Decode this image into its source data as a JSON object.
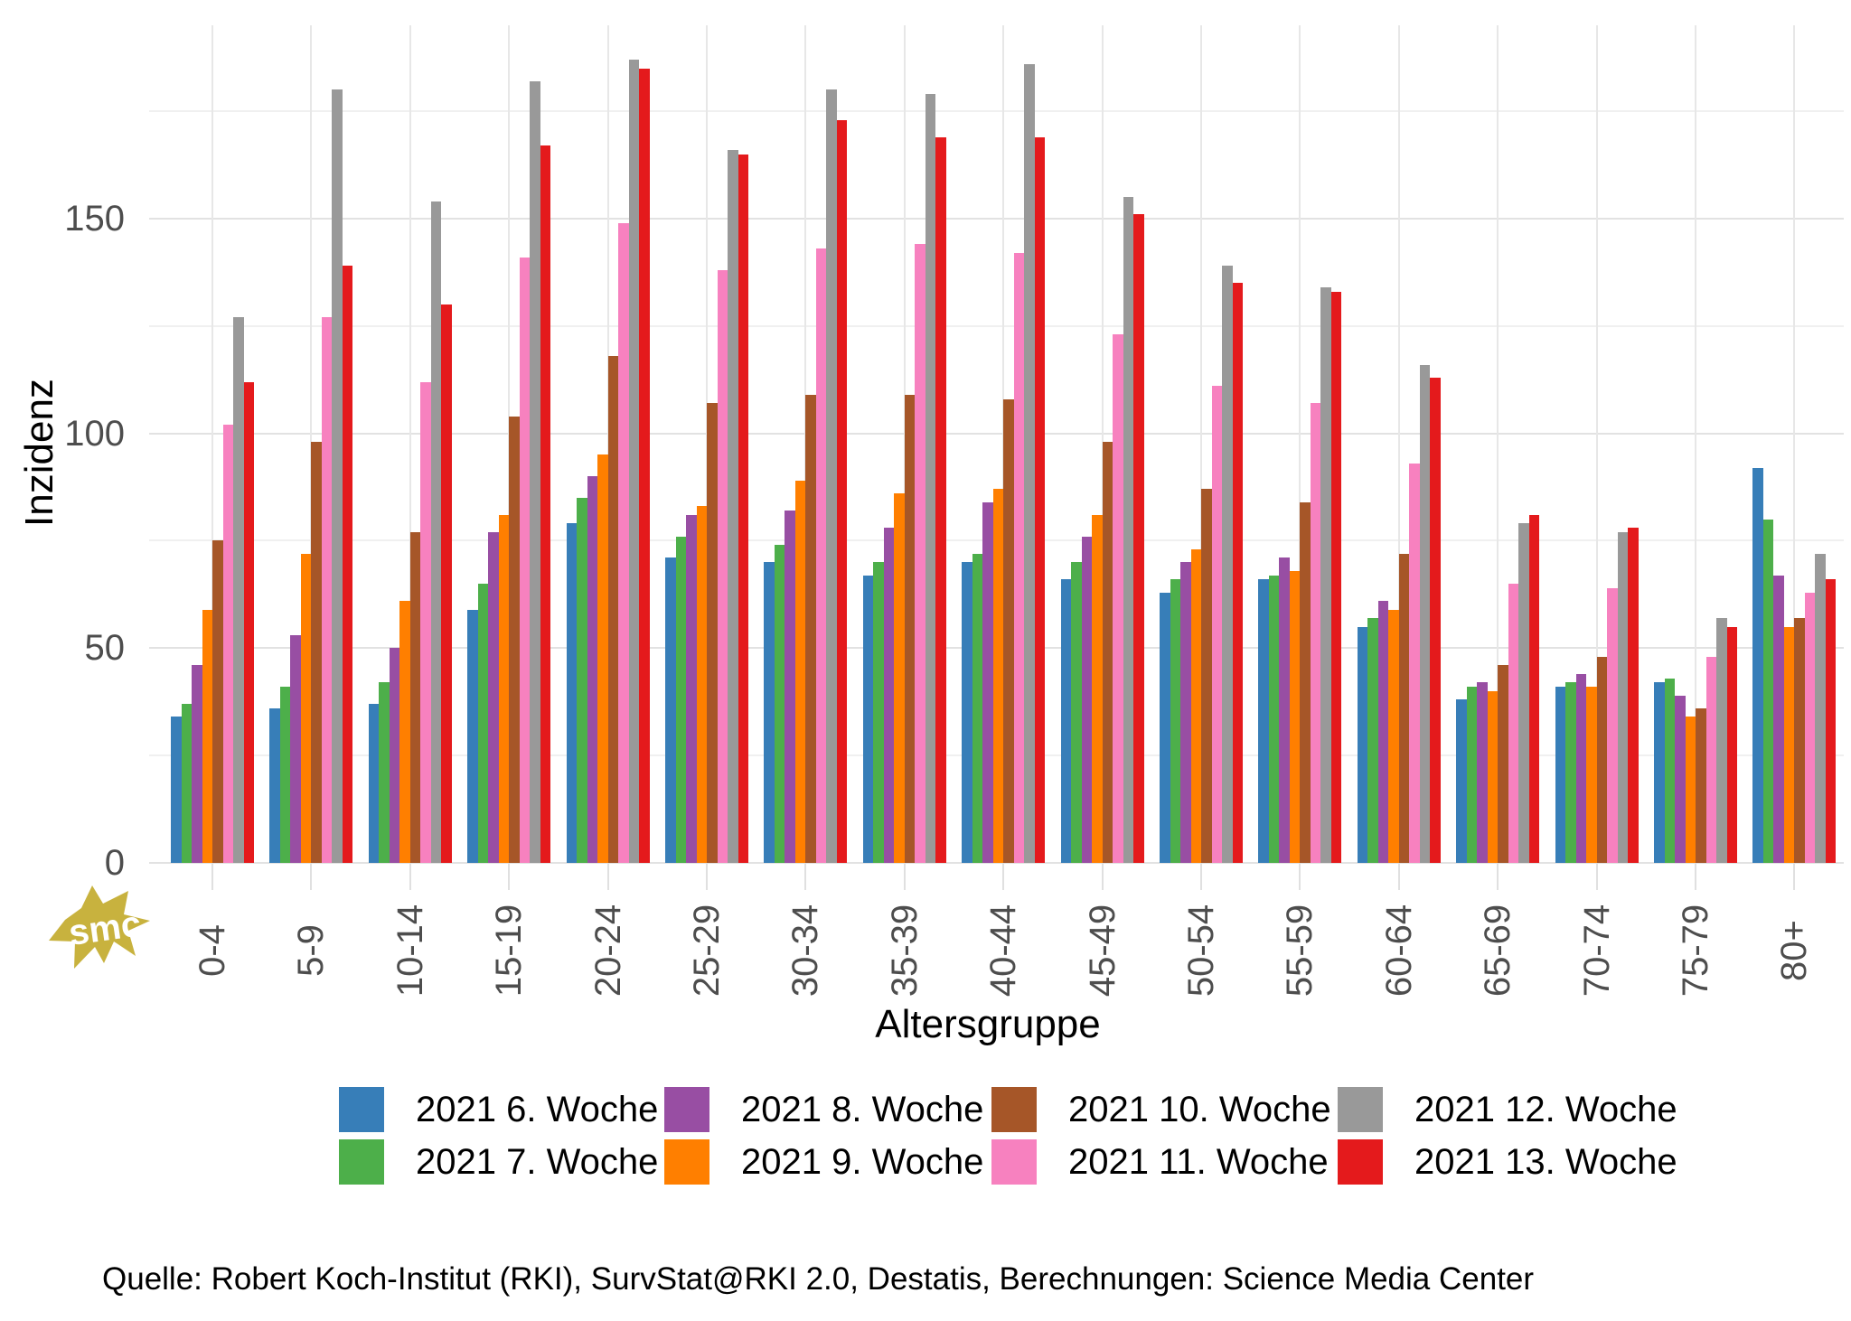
{
  "chart_data": {
    "type": "bar",
    "title": "",
    "xlabel": "Altersgruppe",
    "ylabel": "Inzidenz",
    "y_ticks": [
      0,
      50,
      100,
      150
    ],
    "y_minor_ticks": [
      25,
      75,
      125,
      175
    ],
    "ylim": [
      0,
      195
    ],
    "grid": "on",
    "legend_position": "bottom",
    "categories": [
      "0-4",
      "5-9",
      "10-14",
      "15-19",
      "20-24",
      "25-29",
      "30-34",
      "35-39",
      "40-44",
      "45-49",
      "50-54",
      "55-59",
      "60-64",
      "65-69",
      "70-74",
      "75-79",
      "80+"
    ],
    "series": [
      {
        "name": "2021 6. Woche",
        "color": "#377EB8",
        "values": [
          34,
          36,
          37,
          59,
          79,
          71,
          70,
          67,
          70,
          66,
          63,
          66,
          55,
          38,
          41,
          42,
          92
        ]
      },
      {
        "name": "2021 7. Woche",
        "color": "#4DAF4A",
        "values": [
          37,
          41,
          42,
          65,
          85,
          76,
          74,
          70,
          72,
          70,
          66,
          67,
          57,
          41,
          42,
          43,
          80
        ]
      },
      {
        "name": "2021 8. Woche",
        "color": "#984EA3",
        "values": [
          46,
          53,
          50,
          77,
          90,
          81,
          82,
          78,
          84,
          76,
          70,
          71,
          61,
          42,
          44,
          39,
          67
        ]
      },
      {
        "name": "2021 9. Woche",
        "color": "#FF7F00",
        "values": [
          59,
          72,
          61,
          81,
          95,
          83,
          89,
          86,
          87,
          81,
          73,
          68,
          59,
          40,
          41,
          34,
          55
        ]
      },
      {
        "name": "2021 10. Woche",
        "color": "#A65628",
        "values": [
          75,
          98,
          77,
          104,
          118,
          107,
          109,
          109,
          108,
          98,
          87,
          84,
          72,
          46,
          48,
          36,
          57
        ]
      },
      {
        "name": "2021 11. Woche",
        "color": "#F781BF",
        "values": [
          102,
          127,
          112,
          141,
          149,
          138,
          143,
          144,
          142,
          123,
          111,
          107,
          93,
          65,
          64,
          48,
          63
        ]
      },
      {
        "name": "2021 12. Woche",
        "color": "#999999",
        "values": [
          127,
          180,
          154,
          182,
          187,
          166,
          180,
          179,
          186,
          155,
          139,
          134,
          116,
          79,
          77,
          57,
          72
        ]
      },
      {
        "name": "2021 13. Woche",
        "color": "#E41A1C",
        "values": [
          112,
          139,
          130,
          167,
          185,
          165,
          173,
          169,
          169,
          151,
          135,
          133,
          113,
          81,
          78,
          55,
          66
        ]
      }
    ],
    "caption": "Quelle: Robert Koch-Institut (RKI), SurvStat@RKI 2.0, Destatis, Berechnungen: Science Media Center"
  },
  "watermark": {
    "text": "smc",
    "color": "#C8B23E"
  }
}
